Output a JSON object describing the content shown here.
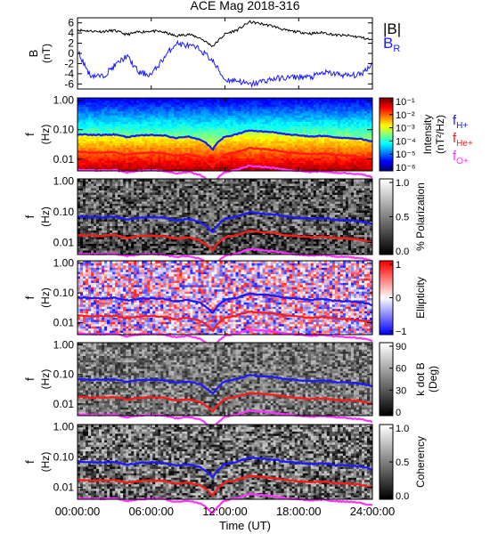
{
  "figure": {
    "title": "ACE Mag 2018-316",
    "xlabel": "Time (UT)",
    "xticks": [
      "00:00:00",
      "06:00:00",
      "12:00:00",
      "18:00:00",
      "24:00:00"
    ]
  },
  "colors": {
    "hplus": "#1a1aff",
    "heplus": "#ff1a1a",
    "oplus": "#ff33ff",
    "btotal": "#000000",
    "br": "#1a1aff"
  },
  "chart_data": [
    {
      "type": "line",
      "panel": "field",
      "ylabel": "B",
      "yunits": "(nT)",
      "ylim": [
        -7,
        7
      ],
      "yticks": [
        "6",
        "4",
        "2",
        "0",
        "-2",
        "-4",
        "-6"
      ],
      "xlim": [
        0,
        24
      ],
      "legend": [
        "|B|",
        "BR"
      ],
      "series": [
        {
          "name": "|B|",
          "x": [
            0,
            1,
            2,
            3,
            4,
            5,
            6,
            7,
            8,
            9,
            10,
            11,
            12,
            13,
            14,
            15,
            16,
            17,
            18,
            19,
            20,
            21,
            22,
            23,
            24
          ],
          "values": [
            4.6,
            4.4,
            4.3,
            4.5,
            3.7,
            4.2,
            4.4,
            4.2,
            3.4,
            3.8,
            3.0,
            1.4,
            3.8,
            4.6,
            6.2,
            5.8,
            5.3,
            4.5,
            4.2,
            3.9,
            4.1,
            3.6,
            3.5,
            3.2,
            2.6
          ]
        },
        {
          "name": "BR",
          "x": [
            0,
            1,
            2,
            3,
            4,
            5,
            6,
            7,
            8,
            9,
            10,
            11,
            12,
            13,
            14,
            15,
            16,
            17,
            18,
            19,
            20,
            21,
            22,
            23,
            24
          ],
          "values": [
            0.5,
            -4.2,
            -4.6,
            -2.5,
            -0.5,
            -3.8,
            -4.2,
            -1.0,
            2.0,
            1.5,
            0.8,
            -1.5,
            -5.2,
            -5.3,
            -6.2,
            -5.5,
            -5.0,
            -4.8,
            -4.6,
            -4.7,
            -3.8,
            -4.0,
            -4.4,
            -4.2,
            -2.0
          ]
        }
      ]
    },
    {
      "type": "heatmap",
      "panel": "intensity",
      "ylabel": "f",
      "yunits": "(Hz)",
      "scale": "log",
      "ylim": [
        0.004,
        1.2
      ],
      "yticks": [
        "1.00",
        "0.10",
        "0.01"
      ],
      "colorbar": {
        "label": "Intensity",
        "units": "(nT²/Hz)",
        "ticks": [
          "10⁻¹",
          "10⁻²",
          "10⁻³",
          "10⁻⁴",
          "10⁻⁵",
          "10⁻⁶"
        ]
      },
      "legend": [
        "fH+",
        "fHe+",
        "fO+"
      ]
    },
    {
      "type": "heatmap",
      "panel": "polarization",
      "ylabel": "f",
      "yunits": "(Hz)",
      "scale": "log",
      "ylim": [
        0.004,
        1.2
      ],
      "yticks": [
        "1.00",
        "0.10",
        "0.01"
      ],
      "colorbar": {
        "label": "% Polarization",
        "ticks": [
          "1.0",
          "0.5",
          "0.0"
        ]
      }
    },
    {
      "type": "heatmap",
      "panel": "ellipticity",
      "ylabel": "f",
      "yunits": "(Hz)",
      "scale": "log",
      "ylim": [
        0.004,
        1.2
      ],
      "yticks": [
        "1.00",
        "0.10",
        "0.01"
      ],
      "colorbar": {
        "label": "Ellipticity",
        "ticks": [
          "1",
          "0",
          "−1"
        ]
      }
    },
    {
      "type": "heatmap",
      "panel": "kdotb",
      "ylabel": "f",
      "yunits": "(Hz)",
      "scale": "log",
      "ylim": [
        0.004,
        1.2
      ],
      "yticks": [
        "1.00",
        "0.10",
        "0.01"
      ],
      "colorbar": {
        "label": "k dot B",
        "units": "(Deg)",
        "ticks": [
          "90",
          "60",
          "30",
          "0"
        ]
      }
    },
    {
      "type": "heatmap",
      "panel": "coherency",
      "ylabel": "f",
      "yunits": "(Hz)",
      "scale": "log",
      "ylim": [
        0.004,
        1.2
      ],
      "yticks": [
        "1.00",
        "0.10",
        "0.01"
      ],
      "colorbar": {
        "label": "Coherency",
        "ticks": [
          "1.0",
          "0.5",
          "0.0"
        ]
      }
    }
  ],
  "gyro_lines": {
    "x": [
      0,
      1,
      2,
      3,
      4,
      5,
      6,
      7,
      8,
      9,
      10,
      11,
      12,
      13,
      14,
      15,
      16,
      17,
      18,
      19,
      20,
      21,
      22,
      23,
      24
    ],
    "fH": [
      0.07,
      0.067,
      0.066,
      0.069,
      0.056,
      0.064,
      0.067,
      0.064,
      0.052,
      0.058,
      0.046,
      0.021,
      0.058,
      0.07,
      0.095,
      0.088,
      0.081,
      0.069,
      0.064,
      0.059,
      0.062,
      0.055,
      0.053,
      0.049,
      0.04
    ]
  }
}
